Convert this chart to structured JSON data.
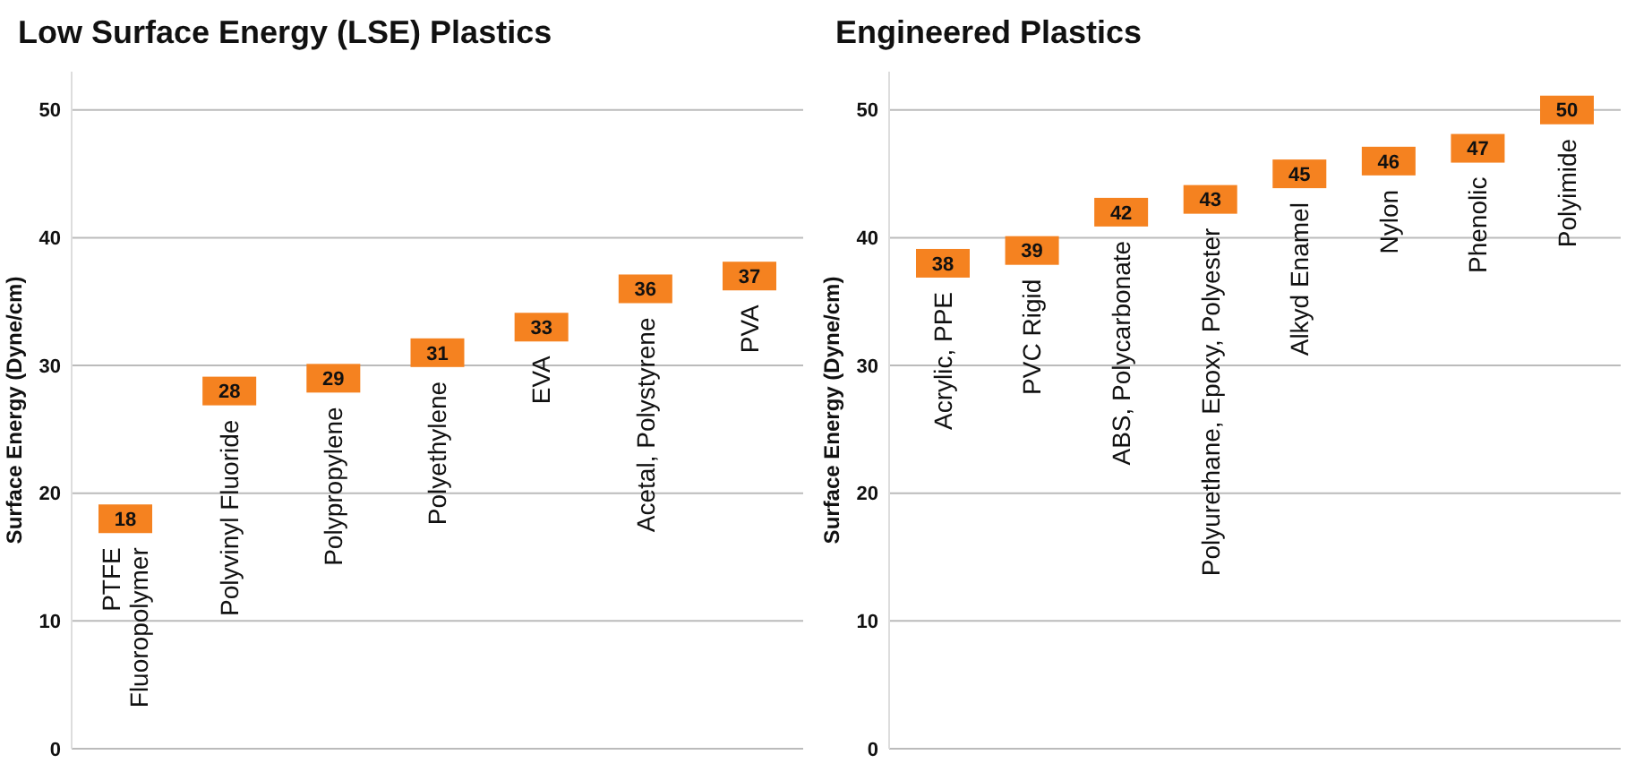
{
  "chart_data": [
    {
      "type": "scatter",
      "title": "Low Surface Energy (LSE) Plastics",
      "ylabel": "Surface Energy (Dyne/cm)",
      "categories": [
        "PTFE\nFluoropolymer",
        "Polyvinyl Fluoride",
        "Polypropylene",
        "Polyethylene",
        "EVA",
        "Acetal, Polystyrene",
        "PVA"
      ],
      "series": [
        {
          "color": "#f58220",
          "values": [
            18,
            28,
            29,
            31,
            33,
            36,
            37
          ]
        }
      ],
      "ylim": [
        0,
        53
      ],
      "yticks": [
        0,
        10,
        20,
        30,
        40,
        50
      ],
      "grid": "y",
      "marker": "square",
      "data_labels": true
    },
    {
      "type": "scatter",
      "title": "Engineered Plastics",
      "ylabel": "Surface Energy (Dyne/cm)",
      "categories": [
        "Acrylic, PPE",
        "PVC Rigid",
        "ABS, Polycarbonate",
        "Polyurethane, Epoxy, Polyester",
        "Alkyd Enamel",
        "Nylon",
        "Phenolic",
        "Polyimide"
      ],
      "series": [
        {
          "color": "#f58220",
          "values": [
            38,
            39,
            42,
            43,
            45,
            46,
            47,
            50
          ]
        }
      ],
      "ylim": [
        0,
        53
      ],
      "yticks": [
        0,
        10,
        20,
        30,
        40,
        50
      ],
      "grid": "y",
      "marker": "square",
      "data_labels": true
    }
  ]
}
